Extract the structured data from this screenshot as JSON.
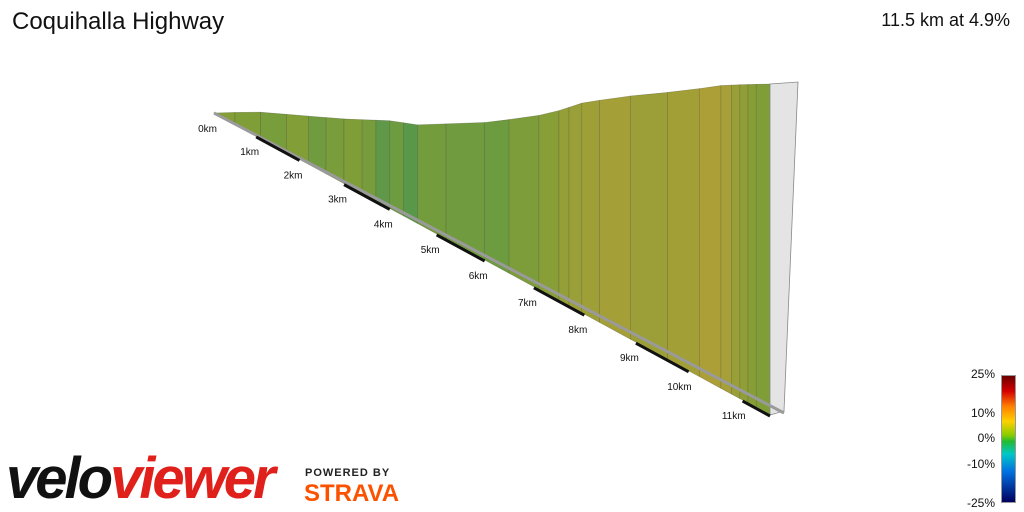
{
  "header": {
    "title": "Coquihalla Highway",
    "summary": "11.5 km at 4.9%"
  },
  "chart_data": {
    "type": "area",
    "title": "Coquihalla Highway",
    "summary": "11.5 km at 4.9%",
    "distance_km": 11.5,
    "average_gradient_pct": 4.9,
    "km_labels": [
      "0km",
      "1km",
      "2km",
      "3km",
      "4km",
      "5km",
      "6km",
      "7km",
      "8km",
      "9km",
      "10km",
      "11km"
    ],
    "segments": [
      {
        "start_km": 0.0,
        "end_km": 0.5,
        "gradient_pct": 3.5
      },
      {
        "start_km": 0.5,
        "end_km": 1.1,
        "gradient_pct": 3.0
      },
      {
        "start_km": 1.1,
        "end_km": 1.7,
        "gradient_pct": 2.5
      },
      {
        "start_km": 1.7,
        "end_km": 2.2,
        "gradient_pct": 3.2
      },
      {
        "start_km": 2.2,
        "end_km": 2.6,
        "gradient_pct": 2.0
      },
      {
        "start_km": 2.6,
        "end_km": 3.0,
        "gradient_pct": 2.6
      },
      {
        "start_km": 3.0,
        "end_km": 3.4,
        "gradient_pct": 3.0
      },
      {
        "start_km": 3.4,
        "end_km": 3.7,
        "gradient_pct": 2.4
      },
      {
        "start_km": 3.7,
        "end_km": 4.0,
        "gradient_pct": 0.8
      },
      {
        "start_km": 4.0,
        "end_km": 4.3,
        "gradient_pct": 1.8
      },
      {
        "start_km": 4.3,
        "end_km": 4.6,
        "gradient_pct": 0.6
      },
      {
        "start_km": 4.6,
        "end_km": 5.2,
        "gradient_pct": 2.2
      },
      {
        "start_km": 5.2,
        "end_km": 6.0,
        "gradient_pct": 2.0
      },
      {
        "start_km": 6.0,
        "end_km": 6.5,
        "gradient_pct": 1.8
      },
      {
        "start_km": 6.5,
        "end_km": 7.1,
        "gradient_pct": 2.8
      },
      {
        "start_km": 7.1,
        "end_km": 7.5,
        "gradient_pct": 4.2
      },
      {
        "start_km": 7.5,
        "end_km": 7.7,
        "gradient_pct": 5.8
      },
      {
        "start_km": 7.7,
        "end_km": 7.95,
        "gradient_pct": 6.5
      },
      {
        "start_km": 7.95,
        "end_km": 8.3,
        "gradient_pct": 7.2
      },
      {
        "start_km": 8.3,
        "end_km": 8.9,
        "gradient_pct": 7.8
      },
      {
        "start_km": 8.9,
        "end_km": 9.6,
        "gradient_pct": 6.8
      },
      {
        "start_km": 9.6,
        "end_km": 10.2,
        "gradient_pct": 7.6
      },
      {
        "start_km": 10.2,
        "end_km": 10.6,
        "gradient_pct": 9.0
      },
      {
        "start_km": 10.6,
        "end_km": 10.8,
        "gradient_pct": 8.2
      },
      {
        "start_km": 10.8,
        "end_km": 10.95,
        "gradient_pct": 6.2
      },
      {
        "start_km": 10.95,
        "end_km": 11.1,
        "gradient_pct": 5.0
      },
      {
        "start_km": 11.1,
        "end_km": 11.25,
        "gradient_pct": 4.0
      },
      {
        "start_km": 11.25,
        "end_km": 11.5,
        "gradient_pct": 3.0
      }
    ],
    "elevation_profile": [
      [
        0.0,
        0
      ],
      [
        1.0,
        2
      ],
      [
        2.0,
        -4
      ],
      [
        3.0,
        -10
      ],
      [
        4.0,
        -13
      ],
      [
        4.6,
        -20
      ],
      [
        6.0,
        -16
      ],
      [
        7.0,
        -6
      ],
      [
        7.5,
        4
      ],
      [
        8.0,
        18
      ],
      [
        9.0,
        30
      ],
      [
        10.0,
        38
      ],
      [
        10.5,
        46
      ],
      [
        11.0,
        48
      ],
      [
        11.5,
        49
      ]
    ],
    "color_scale": {
      "labels": [
        "25%",
        "10%",
        "0%",
        "-10%",
        "-25%"
      ],
      "values": [
        25,
        10,
        0,
        -10,
        -25
      ]
    }
  },
  "branding": {
    "logo_part1": "velo",
    "logo_part2": "viewer",
    "powered_by": "POWERED BY",
    "strava": "STRAVA"
  }
}
